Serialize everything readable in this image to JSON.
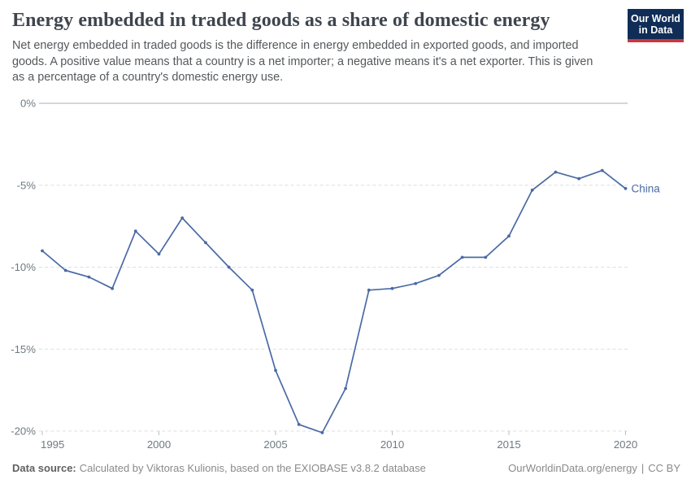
{
  "header": {
    "title": "Energy embedded in traded goods as a share of domestic energy",
    "subtitle_lines": [
      "Net energy embedded in traded goods is the difference in energy embedded in exported goods, and imported",
      "goods. A positive value means that a country is a net importer; a negative means it's a net exporter. This is given",
      "as a percentage of a country's domestic energy use."
    ],
    "logo": {
      "line1": "Our World",
      "line2": "in Data",
      "bg_color": "#0f2d56",
      "accent_color": "#d0353c"
    }
  },
  "chart_data": {
    "type": "line",
    "title": "Energy embedded in traded goods as a share of domestic energy",
    "unit": "%",
    "xlim": [
      1995,
      2020
    ],
    "ylim": [
      -20.6,
      0
    ],
    "grid": true,
    "legend": "end-of-line-label",
    "x_ticks": [
      1995,
      2000,
      2005,
      2010,
      2015,
      2020
    ],
    "y_ticks": [
      {
        "value": 0,
        "label": "0%"
      },
      {
        "value": -5,
        "label": "-5%"
      },
      {
        "value": -10,
        "label": "-10%"
      },
      {
        "value": -15,
        "label": "-15%"
      },
      {
        "value": -20,
        "label": "-20%"
      }
    ],
    "series": [
      {
        "name": "China",
        "color": "#4a6aa5",
        "x": [
          1995,
          1996,
          1997,
          1998,
          1999,
          2000,
          2001,
          2002,
          2003,
          2004,
          2005,
          2006,
          2007,
          2008,
          2009,
          2010,
          2011,
          2012,
          2013,
          2014,
          2015,
          2016,
          2017,
          2018,
          2019,
          2020
        ],
        "values": [
          -9.0,
          -10.2,
          -10.6,
          -11.3,
          -7.8,
          -9.2,
          -7.0,
          -8.5,
          -10.0,
          -11.4,
          -16.3,
          -19.6,
          -20.1,
          -17.4,
          -11.4,
          -11.3,
          -11.0,
          -10.5,
          -9.4,
          -9.4,
          -8.1,
          -5.3,
          -4.2,
          -4.6,
          -4.1,
          -5.2
        ]
      }
    ]
  },
  "footer": {
    "source_label": "Data source:",
    "source_text": "Calculated by Viktoras Kulionis, based on the EXIOBASE v3.8.2 database",
    "url": "OurWorldinData.org/energy",
    "divider": "|",
    "license": "CC BY"
  }
}
